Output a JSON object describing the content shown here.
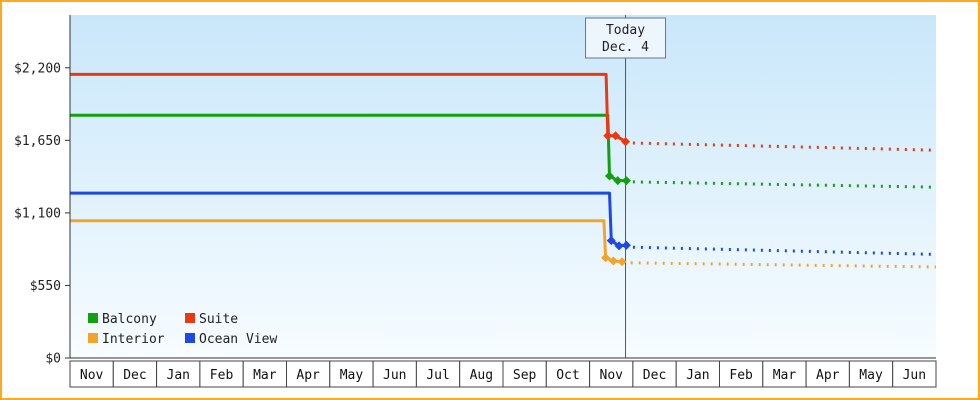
{
  "chart_data": {
    "type": "line",
    "title": "",
    "xlabel": "",
    "ylabel": "",
    "grid": false,
    "xlim": [
      0,
      20
    ],
    "ylim": [
      0,
      2600
    ],
    "x_categories": [
      "Nov",
      "Dec",
      "Jan",
      "Feb",
      "Mar",
      "Apr",
      "May",
      "Jun",
      "Jul",
      "Aug",
      "Sep",
      "Oct",
      "Nov",
      "Dec",
      "Jan",
      "Feb",
      "Mar",
      "Apr",
      "May",
      "Jun"
    ],
    "y_ticks": [
      {
        "value": 0,
        "label": "$0"
      },
      {
        "value": 550,
        "label": "$550"
      },
      {
        "value": 1100,
        "label": "$1,100"
      },
      {
        "value": 1650,
        "label": "$1,650"
      },
      {
        "value": 2200,
        "label": "$2,200"
      }
    ],
    "today": {
      "x": 12.83,
      "label_line1": "Today",
      "label_line2": "Dec. 4"
    },
    "legend": {
      "position": "bottom-left",
      "items": [
        "Balcony",
        "Suite",
        "Interior",
        "Ocean View"
      ]
    },
    "series": [
      {
        "name": "Balcony",
        "color": "#12a012",
        "history": [
          [
            0,
            1840
          ],
          [
            12.42,
            1840
          ],
          [
            12.46,
            1380
          ],
          [
            12.65,
            1345
          ],
          [
            12.85,
            1345
          ]
        ],
        "markers": [
          [
            12.46,
            1380
          ],
          [
            12.65,
            1345
          ],
          [
            12.85,
            1345
          ]
        ],
        "forecast": [
          [
            13.0,
            1335
          ],
          [
            20,
            1295
          ]
        ]
      },
      {
        "name": "Suite",
        "color": "#ec3812",
        "history": [
          [
            0,
            2150
          ],
          [
            12.38,
            2150
          ],
          [
            12.42,
            1685
          ],
          [
            12.6,
            1685
          ],
          [
            12.83,
            1640
          ]
        ],
        "markers": [
          [
            12.42,
            1685
          ],
          [
            12.6,
            1685
          ],
          [
            12.83,
            1640
          ]
        ],
        "forecast": [
          [
            13.0,
            1630
          ],
          [
            20,
            1575
          ]
        ]
      },
      {
        "name": "Interior",
        "color": "#f2a52c",
        "history": [
          [
            0,
            1040
          ],
          [
            12.33,
            1040
          ],
          [
            12.37,
            760
          ],
          [
            12.55,
            735
          ],
          [
            12.75,
            730
          ]
        ],
        "markers": [
          [
            12.37,
            760
          ],
          [
            12.55,
            735
          ],
          [
            12.75,
            730
          ]
        ],
        "forecast": [
          [
            12.95,
            722
          ],
          [
            20,
            690
          ]
        ]
      },
      {
        "name": "Ocean View",
        "color": "#1e49e2",
        "history": [
          [
            0,
            1250
          ],
          [
            12.46,
            1250
          ],
          [
            12.5,
            890
          ],
          [
            12.68,
            850
          ],
          [
            12.85,
            855
          ]
        ],
        "markers": [
          [
            12.5,
            890
          ],
          [
            12.68,
            850
          ],
          [
            12.85,
            855
          ]
        ],
        "forecast": [
          [
            13.0,
            840
          ],
          [
            20,
            785
          ]
        ]
      }
    ],
    "colors": {
      "frame_border": "#ffa81e",
      "plot_top": "#c9e7fa",
      "plot_bottom": "#f7fcff",
      "axis": "#333333",
      "text": "#222222",
      "today_line": "#555555",
      "today_box_fill": "#eef6fd",
      "today_box_border": "#667788",
      "month_cell_fill": "#ffffff",
      "month_cell_border": "#444444"
    }
  }
}
